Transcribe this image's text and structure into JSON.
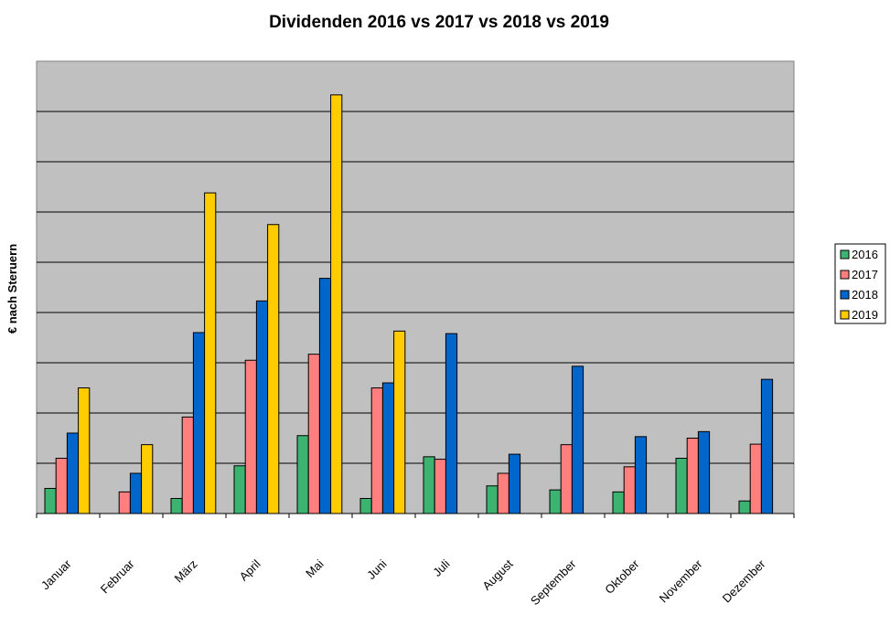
{
  "chart_data": {
    "type": "bar",
    "title": "Dividenden 2016 vs 2017 vs 2018 vs 2019",
    "ylabel": "€ nach Steruern",
    "xlabel": "",
    "categories": [
      "Januar",
      "Februar",
      "März",
      "April",
      "Mai",
      "Juni",
      "Juli",
      "August",
      "September",
      "Oktober",
      "November",
      "Dezember"
    ],
    "series": [
      {
        "name": "2016",
        "color": "#3cb371",
        "values": [
          0.5,
          0,
          0.3,
          0.95,
          1.55,
          0.3,
          1.13,
          0.55,
          0.47,
          0.43,
          1.1,
          0.25
        ]
      },
      {
        "name": "2017",
        "color": "#ff7f7f",
        "values": [
          1.1,
          0.43,
          1.92,
          3.05,
          3.17,
          2.5,
          1.08,
          0.8,
          1.37,
          0.93,
          1.5,
          1.38
        ]
      },
      {
        "name": "2018",
        "color": "#0066cc",
        "values": [
          1.6,
          0.8,
          3.6,
          4.23,
          4.68,
          2.6,
          3.58,
          1.18,
          2.93,
          1.53,
          1.63,
          2.67
        ]
      },
      {
        "name": "2019",
        "color": "#ffcc00",
        "values": [
          2.5,
          1.37,
          6.38,
          5.75,
          8.33,
          3.63,
          null,
          null,
          null,
          null,
          null,
          null
        ]
      }
    ],
    "ylim": [
      0,
      9
    ],
    "grid": true,
    "legend_position": "right",
    "plot_background": "#c0c0c0"
  }
}
